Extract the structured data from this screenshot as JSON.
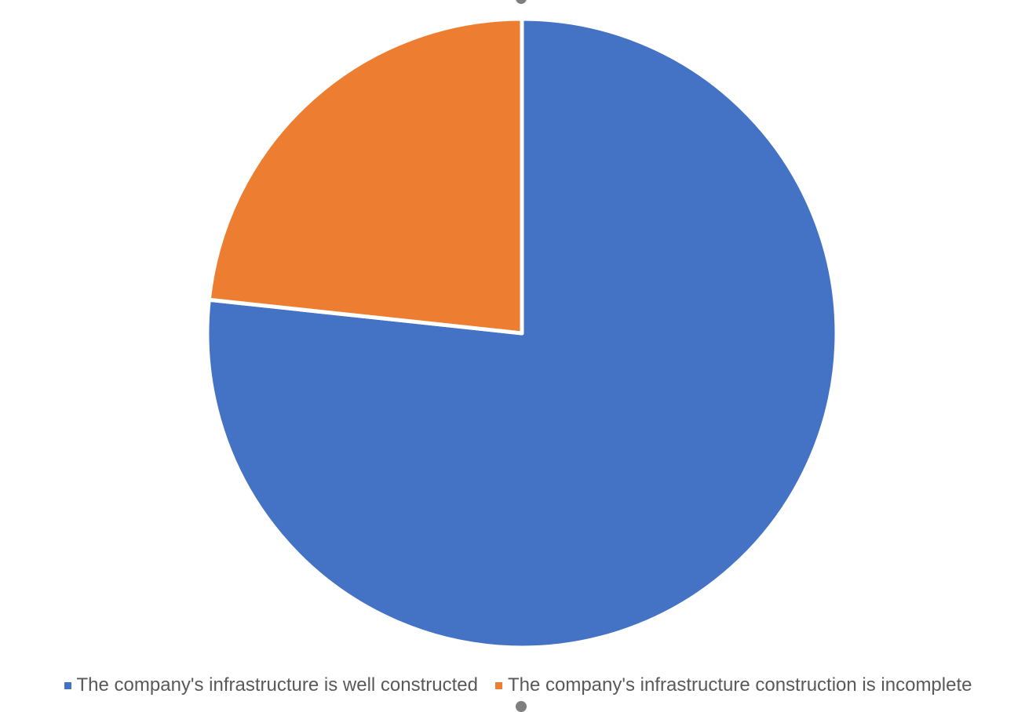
{
  "chart_data": {
    "type": "pie",
    "categories": [
      "The company's infrastructure is well constructed",
      "The company's infrastructure construction is incomplete"
    ],
    "values": [
      76.7,
      23.3
    ],
    "colors": [
      "#4472C4",
      "#ED7D31"
    ],
    "title": "",
    "legend_position": "bottom",
    "start_angle_deg": 0,
    "direction": "clockwise"
  },
  "legend": {
    "items": [
      {
        "label": "The company's infrastructure is well constructed",
        "color": "#4472C4"
      },
      {
        "label": "The company's infrastructure construction is incomplete",
        "color": "#ED7D31"
      }
    ]
  }
}
